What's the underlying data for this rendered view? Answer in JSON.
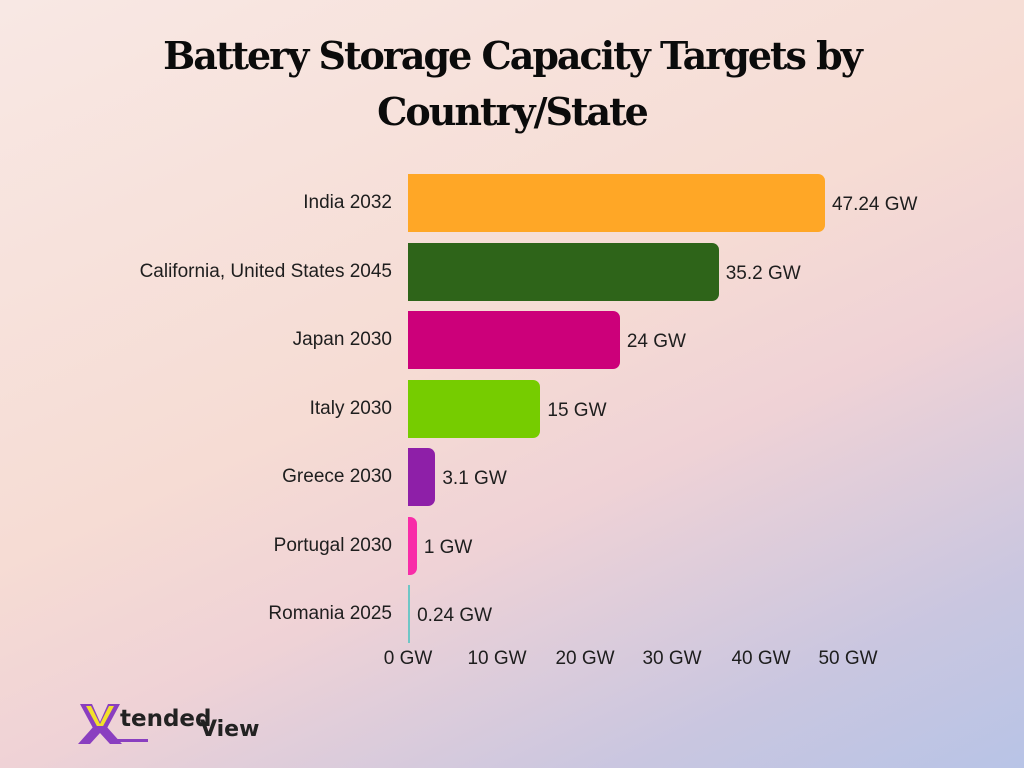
{
  "chart_data": {
    "type": "bar",
    "orientation": "horizontal",
    "title": "Battery Storage Capacity Targets by Country/State",
    "title_lines": [
      "Battery Storage Capacity Targets by",
      "Country/State"
    ],
    "xlabel": "",
    "ylabel": "",
    "unit": "GW",
    "xlim": [
      0,
      50
    ],
    "grid": false,
    "legend": "none",
    "categories": [
      "India 2032",
      "California, United States 2045",
      "Japan 2030",
      "Italy 2030",
      "Greece 2030",
      "Portugal 2030",
      "Romania 2025"
    ],
    "values": [
      47.24,
      35.2,
      24,
      15,
      3.1,
      1,
      0.24
    ],
    "value_labels": [
      "47.24 GW",
      "35.2 GW",
      "24 GW",
      "15 GW",
      "3.1 GW",
      "1 GW",
      "0.24 GW"
    ],
    "colors": [
      "#ffa726",
      "#2e6419",
      "#cc007a",
      "#76cc00",
      "#8e1fa8",
      "#f82ca8",
      "#6fc6c6"
    ],
    "x_ticks": [
      "0 GW",
      "10 GW",
      "20 GW",
      "30 GW",
      "40 GW",
      "50 GW"
    ]
  },
  "branding": {
    "logo_prefix": "X",
    "logo_middle": "tended",
    "logo_suffix": "View",
    "colors": {
      "purple": "#8a3fc0",
      "yellow": "#f2e12a"
    }
  }
}
